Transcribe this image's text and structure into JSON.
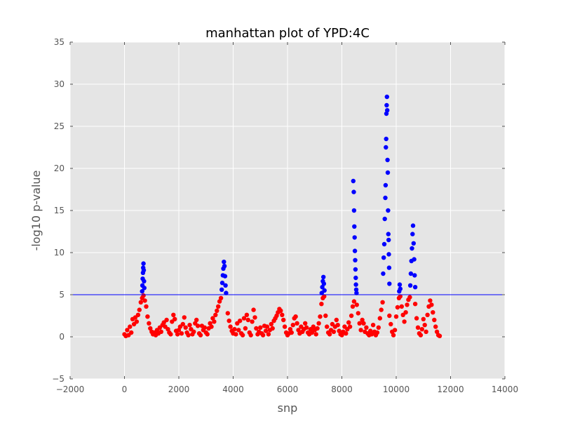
{
  "chart_data": {
    "type": "scatter",
    "title": "manhattan plot of YPD:4C",
    "xlabel": "snp",
    "ylabel": "-log10 p-value",
    "xlim": [
      -2000,
      14000
    ],
    "ylim": [
      -5,
      35
    ],
    "x_ticks": [
      -2000,
      0,
      2000,
      4000,
      6000,
      8000,
      10000,
      12000,
      14000
    ],
    "y_ticks": [
      -5,
      0,
      5,
      10,
      15,
      20,
      25,
      30,
      35
    ],
    "grid": true,
    "threshold": 5,
    "colors": {
      "below_threshold": "#ff0000",
      "above_threshold": "#0000ff",
      "threshold_line": "#0000ff",
      "plot_background": "#e5e5e5",
      "grid": "#ffffff"
    },
    "series": [
      {
        "color": "#ff0000",
        "points": [
          [
            0,
            0.3
          ],
          [
            50,
            0.1
          ],
          [
            100,
            0.8
          ],
          [
            150,
            0.2
          ],
          [
            200,
            1.2
          ],
          [
            250,
            0.5
          ],
          [
            300,
            2.1
          ],
          [
            350,
            1.5
          ],
          [
            400,
            2.3
          ],
          [
            450,
            1.8
          ],
          [
            500,
            2.6
          ],
          [
            550,
            3.2
          ],
          [
            600,
            4.1
          ],
          [
            650,
            4.6
          ],
          [
            700,
            4.9
          ],
          [
            750,
            4.3
          ],
          [
            800,
            3.6
          ],
          [
            850,
            2.4
          ],
          [
            900,
            1.6
          ],
          [
            950,
            1.0
          ],
          [
            1000,
            0.6
          ],
          [
            1050,
            0.3
          ],
          [
            1100,
            0.5
          ],
          [
            1150,
            0.2
          ],
          [
            1200,
            0.8
          ],
          [
            1250,
            0.4
          ],
          [
            1300,
            1.1
          ],
          [
            1350,
            0.6
          ],
          [
            1400,
            1.4
          ],
          [
            1450,
            1.7
          ],
          [
            1500,
            1.2
          ],
          [
            1550,
            2.0
          ],
          [
            1600,
            0.9
          ],
          [
            1650,
            0.5
          ],
          [
            1700,
            0.3
          ],
          [
            1750,
            1.8
          ],
          [
            1800,
            2.6
          ],
          [
            1850,
            2.1
          ],
          [
            1900,
            0.7
          ],
          [
            1950,
            0.3
          ],
          [
            2000,
            0.8
          ],
          [
            2050,
            1.2
          ],
          [
            2100,
            0.4
          ],
          [
            2150,
            1.5
          ],
          [
            2200,
            2.3
          ],
          [
            2250,
            1.1
          ],
          [
            2300,
            0.5
          ],
          [
            2350,
            0.2
          ],
          [
            2400,
            1.4
          ],
          [
            2450,
            0.9
          ],
          [
            2500,
            0.3
          ],
          [
            2550,
            0.6
          ],
          [
            2600,
            1.6
          ],
          [
            2650,
            2.0
          ],
          [
            2700,
            1.3
          ],
          [
            2750,
            0.4
          ],
          [
            2800,
            0.2
          ],
          [
            2850,
            1.3
          ],
          [
            2900,
            0.8
          ],
          [
            2950,
            1.1
          ],
          [
            3000,
            0.5
          ],
          [
            3050,
            0.3
          ],
          [
            3100,
            1.0
          ],
          [
            3150,
            1.6
          ],
          [
            3200,
            1.2
          ],
          [
            3250,
            2.2
          ],
          [
            3300,
            1.8
          ],
          [
            3350,
            2.6
          ],
          [
            3400,
            3.1
          ],
          [
            3450,
            3.6
          ],
          [
            3500,
            4.2
          ],
          [
            3550,
            4.6
          ],
          [
            3800,
            2.8
          ],
          [
            3850,
            1.9
          ],
          [
            3900,
            1.2
          ],
          [
            3950,
            0.7
          ],
          [
            4000,
            0.4
          ],
          [
            4050,
            0.9
          ],
          [
            4100,
            0.3
          ],
          [
            4150,
            1.6
          ],
          [
            4200,
            0.8
          ],
          [
            4250,
            1.9
          ],
          [
            4300,
            0.4
          ],
          [
            4350,
            0.2
          ],
          [
            4400,
            2.2
          ],
          [
            4450,
            1.0
          ],
          [
            4500,
            2.6
          ],
          [
            4550,
            2.0
          ],
          [
            4600,
            0.5
          ],
          [
            4650,
            0.2
          ],
          [
            4700,
            1.8
          ],
          [
            4750,
            3.2
          ],
          [
            4800,
            2.3
          ],
          [
            4850,
            1.0
          ],
          [
            4900,
            0.3
          ],
          [
            4950,
            0.6
          ],
          [
            5000,
            1.1
          ],
          [
            5050,
            0.4
          ],
          [
            5100,
            0.2
          ],
          [
            5150,
            1.3
          ],
          [
            5200,
            0.7
          ],
          [
            5250,
            1.2
          ],
          [
            5300,
            0.3
          ],
          [
            5350,
            0.8
          ],
          [
            5400,
            1.5
          ],
          [
            5450,
            1.0
          ],
          [
            5500,
            1.9
          ],
          [
            5550,
            2.2
          ],
          [
            5600,
            2.5
          ],
          [
            5650,
            2.9
          ],
          [
            5700,
            3.3
          ],
          [
            5750,
            3.1
          ],
          [
            5800,
            2.6
          ],
          [
            5850,
            2.0
          ],
          [
            5900,
            1.2
          ],
          [
            5950,
            0.5
          ],
          [
            6000,
            0.2
          ],
          [
            6050,
            0.4
          ],
          [
            6100,
            0.9
          ],
          [
            6150,
            0.5
          ],
          [
            6200,
            1.4
          ],
          [
            6250,
            2.2
          ],
          [
            6300,
            2.4
          ],
          [
            6350,
            1.6
          ],
          [
            6400,
            0.8
          ],
          [
            6450,
            0.4
          ],
          [
            6500,
            1.2
          ],
          [
            6550,
            0.6
          ],
          [
            6600,
            0.9
          ],
          [
            6650,
            1.6
          ],
          [
            6700,
            1.1
          ],
          [
            6750,
            0.5
          ],
          [
            6800,
            0.3
          ],
          [
            6850,
            0.9
          ],
          [
            6900,
            0.5
          ],
          [
            6950,
            1.2
          ],
          [
            7000,
            0.8
          ],
          [
            7050,
            0.3
          ],
          [
            7100,
            1.0
          ],
          [
            7150,
            1.6
          ],
          [
            7200,
            2.4
          ],
          [
            7250,
            3.9
          ],
          [
            7300,
            4.6
          ],
          [
            7350,
            4.8
          ],
          [
            7400,
            2.5
          ],
          [
            7450,
            1.2
          ],
          [
            7500,
            0.5
          ],
          [
            7550,
            0.3
          ],
          [
            7600,
            0.8
          ],
          [
            7650,
            1.5
          ],
          [
            7700,
            0.6
          ],
          [
            7750,
            1.2
          ],
          [
            7800,
            2.0
          ],
          [
            7850,
            1.4
          ],
          [
            7900,
            0.7
          ],
          [
            7950,
            0.3
          ],
          [
            8000,
            0.2
          ],
          [
            8050,
            0.6
          ],
          [
            8100,
            1.2
          ],
          [
            8150,
            0.4
          ],
          [
            8200,
            0.9
          ],
          [
            8250,
            1.7
          ],
          [
            8300,
            1.2
          ],
          [
            8350,
            2.5
          ],
          [
            8400,
            3.6
          ],
          [
            8450,
            4.2
          ],
          [
            8550,
            3.8
          ],
          [
            8600,
            2.8
          ],
          [
            8650,
            1.6
          ],
          [
            8700,
            0.8
          ],
          [
            8750,
            2.0
          ],
          [
            8800,
            1.6
          ],
          [
            8850,
            0.6
          ],
          [
            8900,
            1.1
          ],
          [
            8950,
            0.4
          ],
          [
            9000,
            0.2
          ],
          [
            9050,
            0.7
          ],
          [
            9100,
            0.3
          ],
          [
            9150,
            1.4
          ],
          [
            9200,
            0.6
          ],
          [
            9250,
            0.2
          ],
          [
            9300,
            0.5
          ],
          [
            9350,
            1.1
          ],
          [
            9400,
            2.2
          ],
          [
            9450,
            3.2
          ],
          [
            9500,
            4.1
          ],
          [
            9750,
            2.5
          ],
          [
            9800,
            1.5
          ],
          [
            9850,
            0.6
          ],
          [
            9900,
            0.2
          ],
          [
            9950,
            0.8
          ],
          [
            10000,
            2.4
          ],
          [
            10050,
            3.5
          ],
          [
            10100,
            4.6
          ],
          [
            10150,
            4.8
          ],
          [
            10200,
            3.6
          ],
          [
            10250,
            2.6
          ],
          [
            10300,
            1.8
          ],
          [
            10350,
            2.9
          ],
          [
            10400,
            3.8
          ],
          [
            10450,
            4.4
          ],
          [
            10500,
            4.7
          ],
          [
            10700,
            3.9
          ],
          [
            10750,
            2.2
          ],
          [
            10800,
            1.1
          ],
          [
            10850,
            0.4
          ],
          [
            10900,
            0.2
          ],
          [
            10950,
            0.9
          ],
          [
            11000,
            2.1
          ],
          [
            11050,
            1.4
          ],
          [
            11100,
            0.6
          ],
          [
            11150,
            2.6
          ],
          [
            11200,
            3.6
          ],
          [
            11250,
            4.3
          ],
          [
            11300,
            3.8
          ],
          [
            11350,
            2.9
          ],
          [
            11400,
            2.0
          ],
          [
            11450,
            1.2
          ],
          [
            11500,
            0.6
          ],
          [
            11550,
            0.2
          ],
          [
            11600,
            0.1
          ]
        ]
      },
      {
        "color": "#0000ff",
        "points": [
          [
            650,
            5.4
          ],
          [
            660,
            6.1
          ],
          [
            670,
            6.9
          ],
          [
            680,
            7.6
          ],
          [
            690,
            8.2
          ],
          [
            700,
            8.7
          ],
          [
            710,
            7.9
          ],
          [
            720,
            6.6
          ],
          [
            730,
            5.8
          ],
          [
            3580,
            5.6
          ],
          [
            3600,
            6.4
          ],
          [
            3620,
            7.3
          ],
          [
            3640,
            8.1
          ],
          [
            3660,
            8.9
          ],
          [
            3680,
            8.4
          ],
          [
            3700,
            7.2
          ],
          [
            3720,
            6.1
          ],
          [
            3740,
            5.2
          ],
          [
            7260,
            5.2
          ],
          [
            7280,
            5.9
          ],
          [
            7300,
            6.6
          ],
          [
            7320,
            7.1
          ],
          [
            7340,
            6.3
          ],
          [
            7360,
            5.5
          ],
          [
            8420,
            18.5
          ],
          [
            8440,
            17.2
          ],
          [
            8450,
            15.0
          ],
          [
            8460,
            13.1
          ],
          [
            8470,
            11.8
          ],
          [
            8480,
            10.2
          ],
          [
            8490,
            9.1
          ],
          [
            8500,
            8.0
          ],
          [
            8510,
            7.0
          ],
          [
            8520,
            6.2
          ],
          [
            8530,
            5.6
          ],
          [
            8540,
            5.2
          ],
          [
            9520,
            7.5
          ],
          [
            9540,
            9.4
          ],
          [
            9560,
            11.0
          ],
          [
            9580,
            14.0
          ],
          [
            9600,
            16.5
          ],
          [
            9610,
            18.0
          ],
          [
            9620,
            22.5
          ],
          [
            9630,
            23.5
          ],
          [
            9640,
            26.5
          ],
          [
            9650,
            27.5
          ],
          [
            9660,
            28.5
          ],
          [
            9670,
            26.9
          ],
          [
            9680,
            21.0
          ],
          [
            9690,
            19.5
          ],
          [
            9700,
            15.0
          ],
          [
            9710,
            12.2
          ],
          [
            9720,
            11.5
          ],
          [
            9730,
            9.8
          ],
          [
            9740,
            8.2
          ],
          [
            9750,
            6.3
          ],
          [
            10110,
            5.4
          ],
          [
            10130,
            6.2
          ],
          [
            10150,
            5.7
          ],
          [
            10520,
            6.1
          ],
          [
            10540,
            7.5
          ],
          [
            10560,
            9.0
          ],
          [
            10580,
            10.5
          ],
          [
            10600,
            12.2
          ],
          [
            10620,
            13.2
          ],
          [
            10640,
            11.1
          ],
          [
            10660,
            9.2
          ],
          [
            10680,
            7.3
          ],
          [
            10700,
            5.9
          ]
        ]
      }
    ]
  }
}
